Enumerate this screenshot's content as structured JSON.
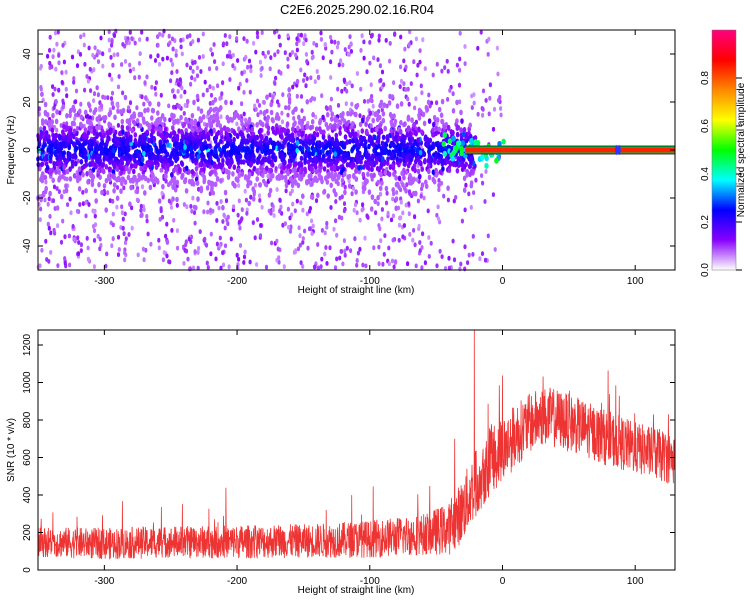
{
  "title": "C2E6.2025.290.02.16.R04",
  "chart_data": [
    {
      "type": "heatmap",
      "name": "spectrogram",
      "xlabel": "Height of straight line (km)",
      "ylabel": "Frequency (Hz)",
      "xlim": [
        -350,
        130
      ],
      "ylim": [
        -50,
        50
      ],
      "xticks": [
        -300,
        -200,
        -100,
        0,
        100
      ],
      "yticks": [
        -40,
        -20,
        0,
        20,
        40
      ],
      "colorbar": {
        "label": "Normalized spectral amplitude",
        "range": [
          0.0,
          1.0
        ],
        "ticks": [
          0.0,
          0.2,
          0.4,
          0.6,
          0.8
        ],
        "tick_labels": [
          "0.0",
          "0.2",
          "0.4",
          "0.6",
          "0.8"
        ],
        "colors": [
          "#ffffff",
          "#8800ff",
          "#0000ff",
          "#00ffff",
          "#00ff00",
          "#ffff00",
          "#ff8800",
          "#ff0000",
          "#ff0080"
        ]
      },
      "features": {
        "scatter_extent_km": [
          -350,
          0
        ],
        "carrier_line_start_km": -28,
        "carrier_line_freq_hz": 0
      }
    },
    {
      "type": "line",
      "name": "snr",
      "xlabel": "Height of straight line (km)",
      "ylabel": "SNR (10 * v/v)",
      "xlim": [
        -350,
        130
      ],
      "ylim": [
        0,
        1280
      ],
      "xticks": [
        -300,
        -200,
        -100,
        0,
        100
      ],
      "yticks": [
        0,
        200,
        400,
        600,
        800,
        1000,
        1200
      ],
      "color": "#ee3333",
      "envelope": {
        "x": [
          -350,
          -300,
          -250,
          -200,
          -150,
          -100,
          -60,
          -40,
          -30,
          -20,
          -10,
          0,
          10,
          20,
          30,
          40,
          60,
          80,
          100,
          120,
          130
        ],
        "y_mid": [
          150,
          140,
          150,
          150,
          155,
          165,
          190,
          220,
          320,
          470,
          580,
          640,
          720,
          780,
          820,
          810,
          760,
          700,
          650,
          610,
          590
        ],
        "y_spread": [
          80,
          85,
          85,
          90,
          90,
          100,
          110,
          140,
          170,
          190,
          190,
          180,
          170,
          160,
          160,
          160,
          150,
          150,
          140,
          140,
          140
        ]
      }
    }
  ]
}
